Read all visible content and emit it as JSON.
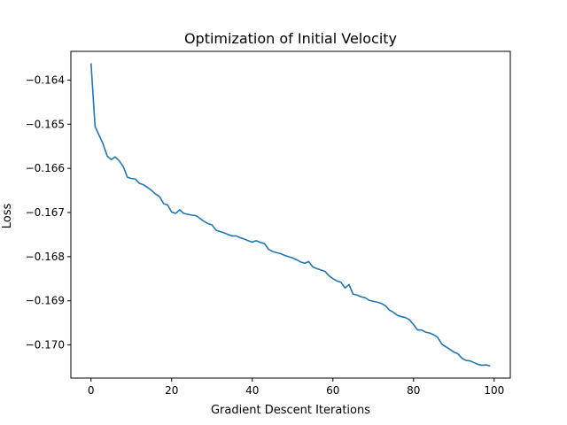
{
  "chart_data": {
    "type": "line",
    "title": "Optimization of Initial Velocity",
    "xlabel": "Gradient Descent Iterations",
    "ylabel": "Loss",
    "xlim": [
      -5,
      104
    ],
    "ylim": [
      -0.17075,
      -0.16335
    ],
    "xticks": [
      0,
      20,
      40,
      60,
      80,
      100
    ],
    "xtick_labels": [
      "0",
      "20",
      "40",
      "60",
      "80",
      "100"
    ],
    "yticks": [
      -0.164,
      -0.165,
      -0.166,
      -0.167,
      -0.168,
      -0.169,
      -0.17
    ],
    "ytick_labels": [
      "−0.164",
      "−0.165",
      "−0.166",
      "−0.167",
      "−0.168",
      "−0.169",
      "−0.170"
    ],
    "grid": false,
    "colors": {
      "line": "#1f77b4",
      "axes": "#000000",
      "background": "#ffffff"
    },
    "series": [
      {
        "x": [
          0,
          1,
          2,
          3,
          4,
          5,
          6,
          7,
          8,
          9,
          10,
          11,
          12,
          13,
          14,
          15,
          16,
          17,
          18,
          19,
          20,
          21,
          22,
          23,
          24,
          25,
          26,
          27,
          28,
          29,
          30,
          31,
          32,
          33,
          34,
          35,
          36,
          37,
          38,
          39,
          40,
          41,
          42,
          43,
          44,
          45,
          46,
          47,
          48,
          49,
          50,
          51,
          52,
          53,
          54,
          55,
          56,
          57,
          58,
          59,
          60,
          61,
          62,
          63,
          64,
          65,
          66,
          67,
          68,
          69,
          70,
          71,
          72,
          73,
          74,
          75,
          76,
          77,
          78,
          79,
          80,
          81,
          82,
          83,
          84,
          85,
          86,
          87,
          88,
          89,
          90,
          91,
          92,
          93,
          94,
          95,
          96,
          97,
          98,
          99
        ],
        "y": [
          -0.16362,
          -0.16505,
          -0.16525,
          -0.16545,
          -0.16572,
          -0.1658,
          -0.16574,
          -0.16583,
          -0.16596,
          -0.1662,
          -0.16623,
          -0.16624,
          -0.16634,
          -0.16637,
          -0.16643,
          -0.1665,
          -0.16658,
          -0.16664,
          -0.1668,
          -0.16683,
          -0.16699,
          -0.16702,
          -0.16694,
          -0.16702,
          -0.16704,
          -0.16706,
          -0.16707,
          -0.16713,
          -0.1672,
          -0.16725,
          -0.16728,
          -0.1674,
          -0.16743,
          -0.16746,
          -0.1675,
          -0.16753,
          -0.16753,
          -0.16757,
          -0.1676,
          -0.16764,
          -0.16767,
          -0.16764,
          -0.16768,
          -0.1677,
          -0.16783,
          -0.16788,
          -0.16791,
          -0.16793,
          -0.16797,
          -0.168,
          -0.16803,
          -0.16807,
          -0.16812,
          -0.16815,
          -0.16811,
          -0.16823,
          -0.16827,
          -0.1683,
          -0.16833,
          -0.16843,
          -0.1685,
          -0.16855,
          -0.16858,
          -0.16871,
          -0.16863,
          -0.16885,
          -0.16887,
          -0.16891,
          -0.16893,
          -0.16899,
          -0.16901,
          -0.16903,
          -0.16906,
          -0.16911,
          -0.16921,
          -0.16926,
          -0.16933,
          -0.16936,
          -0.16938,
          -0.16943,
          -0.16954,
          -0.16966,
          -0.16966,
          -0.16971,
          -0.16973,
          -0.16977,
          -0.16983,
          -0.16998,
          -0.17004,
          -0.1701,
          -0.17016,
          -0.1702,
          -0.1703,
          -0.17035,
          -0.17036,
          -0.1704,
          -0.17044,
          -0.17046,
          -0.17045,
          -0.17048
        ]
      }
    ]
  }
}
